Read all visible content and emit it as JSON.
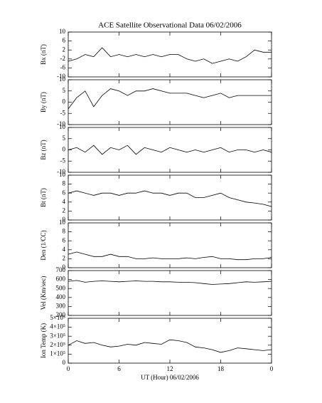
{
  "chart_data": [
    {
      "type": "line",
      "title": "ACE Satellite Observational Data   06/02/2006",
      "ylabel": "Bx (nT)",
      "color": "#000000",
      "xlim": [
        0,
        24
      ],
      "ylim": [
        -10,
        10
      ],
      "yticks": [
        -10,
        -6,
        -2,
        2,
        6,
        10
      ],
      "x": [
        0,
        1,
        2,
        3,
        4,
        5,
        6,
        7,
        8,
        9,
        10,
        11,
        12,
        13,
        14,
        15,
        16,
        17,
        18,
        19,
        20,
        21,
        22,
        23,
        24
      ],
      "values": [
        -3,
        -2,
        0,
        -1,
        3,
        -1,
        0,
        -1,
        0,
        -1,
        0,
        -1,
        0,
        0,
        -2,
        -3,
        -2,
        -4,
        -3,
        -2,
        -3,
        -1,
        2,
        1,
        1
      ]
    },
    {
      "type": "line",
      "ylabel": "By (nT)",
      "color": "#000000",
      "xlim": [
        0,
        24
      ],
      "ylim": [
        -10,
        10
      ],
      "yticks": [
        -10,
        -5,
        0,
        5,
        10
      ],
      "x": [
        0,
        1,
        2,
        3,
        4,
        5,
        6,
        7,
        8,
        9,
        10,
        11,
        12,
        13,
        14,
        15,
        16,
        17,
        18,
        19,
        20,
        21,
        22,
        23,
        24
      ],
      "values": [
        -3,
        2,
        5,
        -2,
        3,
        6,
        5,
        3,
        5,
        5,
        6,
        5,
        4,
        4,
        4,
        3,
        2,
        3,
        4,
        2,
        3,
        3,
        3,
        3,
        3
      ]
    },
    {
      "type": "line",
      "ylabel": "Bz (nT)",
      "color": "#000000",
      "xlim": [
        0,
        24
      ],
      "ylim": [
        -10,
        10
      ],
      "yticks": [
        -10,
        -5,
        0,
        5,
        10
      ],
      "x": [
        0,
        1,
        2,
        3,
        4,
        5,
        6,
        7,
        8,
        9,
        10,
        11,
        12,
        13,
        14,
        15,
        16,
        17,
        18,
        19,
        20,
        21,
        22,
        23,
        24
      ],
      "values": [
        0,
        1,
        -1,
        2,
        -2,
        1,
        0,
        2,
        -2,
        1,
        0,
        -1,
        1,
        0,
        -1,
        0,
        -1,
        0,
        1,
        -1,
        0,
        0,
        -1,
        0,
        -1
      ]
    },
    {
      "type": "line",
      "ylabel": "Bt (nT)",
      "color": "#000000",
      "xlim": [
        0,
        24
      ],
      "ylim": [
        0,
        10
      ],
      "yticks": [
        0,
        2,
        4,
        6,
        8,
        10
      ],
      "x": [
        0,
        1,
        2,
        3,
        4,
        5,
        6,
        7,
        8,
        9,
        10,
        11,
        12,
        13,
        14,
        15,
        16,
        17,
        18,
        19,
        20,
        21,
        22,
        23,
        24
      ],
      "values": [
        6,
        6.5,
        6,
        5.5,
        6,
        6,
        5.5,
        6,
        6,
        6.5,
        6,
        6,
        5.5,
        6,
        6,
        5,
        5,
        5.5,
        6,
        5,
        4.5,
        4,
        3.8,
        3.5,
        3
      ]
    },
    {
      "type": "line",
      "ylabel": "Den (1/CC)",
      "color": "#000000",
      "xlim": [
        0,
        24
      ],
      "ylim": [
        0,
        10
      ],
      "yticks": [
        0,
        2,
        4,
        6,
        8,
        10
      ],
      "x": [
        0,
        1,
        2,
        3,
        4,
        5,
        6,
        7,
        8,
        9,
        10,
        11,
        12,
        13,
        14,
        15,
        16,
        17,
        18,
        19,
        20,
        21,
        22,
        23,
        24
      ],
      "values": [
        3,
        3.5,
        3,
        2.5,
        2.5,
        3,
        2.5,
        2.5,
        2,
        2,
        2.2,
        2,
        2,
        2,
        2.2,
        2,
        2.3,
        2.5,
        2,
        2,
        1.8,
        1.8,
        2,
        2,
        2.3
      ]
    },
    {
      "type": "line",
      "ylabel": "Vel (Km/sec)",
      "color": "#000000",
      "xlim": [
        0,
        24
      ],
      "ylim": [
        200,
        700
      ],
      "yticks": [
        200,
        300,
        400,
        500,
        600,
        700
      ],
      "x": [
        0,
        1,
        2,
        3,
        4,
        5,
        6,
        7,
        8,
        9,
        10,
        11,
        12,
        13,
        14,
        15,
        16,
        17,
        18,
        19,
        20,
        21,
        22,
        23,
        24
      ],
      "values": [
        580,
        590,
        570,
        580,
        585,
        580,
        575,
        580,
        585,
        580,
        580,
        575,
        575,
        570,
        570,
        565,
        555,
        545,
        550,
        555,
        565,
        575,
        570,
        575,
        580
      ]
    },
    {
      "type": "line",
      "ylabel": "Ion Temp (K)",
      "xlabel": "UT (Hour)   06/02/2006",
      "color": "#000000",
      "xlim": [
        0,
        24
      ],
      "ylim": [
        0,
        500000
      ],
      "yticks": [
        0,
        {
          "value": 100000,
          "label": "1×10⁵"
        },
        {
          "value": 200000,
          "label": "2×10⁵"
        },
        {
          "value": 300000,
          "label": "3×10⁵"
        },
        {
          "value": 400000,
          "label": "4×10⁵"
        },
        {
          "value": 500000,
          "label": "5×10⁵"
        }
      ],
      "xticks": [
        0,
        6,
        12,
        18,
        {
          "value": 24,
          "label": "0"
        }
      ],
      "x": [
        0,
        1,
        2,
        3,
        4,
        5,
        6,
        7,
        8,
        9,
        10,
        11,
        12,
        13,
        14,
        15,
        16,
        17,
        18,
        19,
        20,
        21,
        22,
        23,
        24
      ],
      "values": [
        200000,
        250000,
        220000,
        230000,
        200000,
        180000,
        190000,
        210000,
        200000,
        230000,
        220000,
        210000,
        260000,
        250000,
        230000,
        180000,
        170000,
        150000,
        120000,
        140000,
        170000,
        160000,
        150000,
        140000,
        150000
      ]
    }
  ]
}
